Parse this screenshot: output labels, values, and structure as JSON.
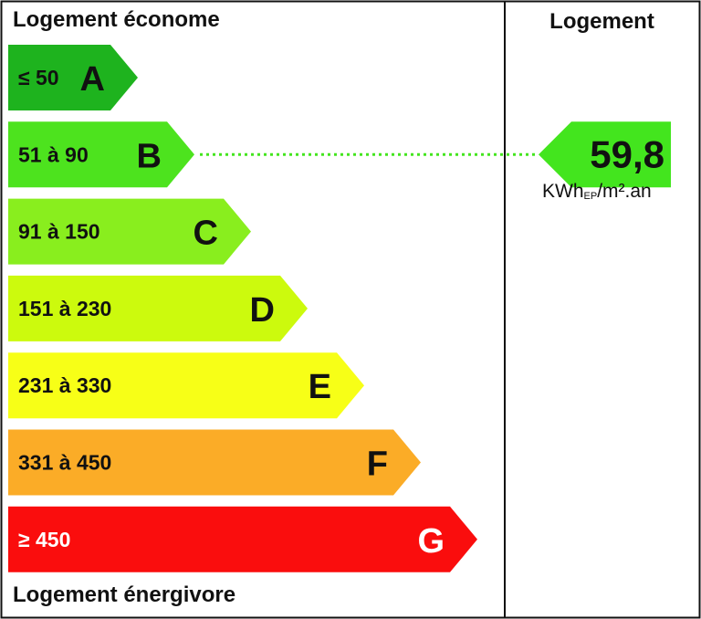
{
  "left_header_top": "Logement économe",
  "left_header_bottom": "Logement énergivore",
  "right_header": "Logement",
  "chart_data": {
    "type": "bar",
    "title": "",
    "categories": [
      "A",
      "B",
      "C",
      "D",
      "E",
      "F",
      "G"
    ],
    "ranges": [
      "≤ 50",
      "51 à 90",
      "91 à 150",
      "151 à 230",
      "231 à 330",
      "331 à 450",
      "≥ 450"
    ],
    "values": [
      1,
      2,
      3,
      4,
      5,
      6,
      7
    ],
    "colors": [
      "#1eb31e",
      "#4de31e",
      "#89ee1e",
      "#ccfa0d",
      "#f7ff17",
      "#fbac27",
      "#fa0d0d"
    ],
    "text_colors": [
      "#111111",
      "#111111",
      "#111111",
      "#111111",
      "#111111",
      "#111111",
      "#ffffff"
    ],
    "current_class": "B",
    "current_value": "59,8",
    "unit_main": "KWh",
    "unit_sub": "EP",
    "unit_tail": "/m².an",
    "marker_color": "#43e51e"
  }
}
